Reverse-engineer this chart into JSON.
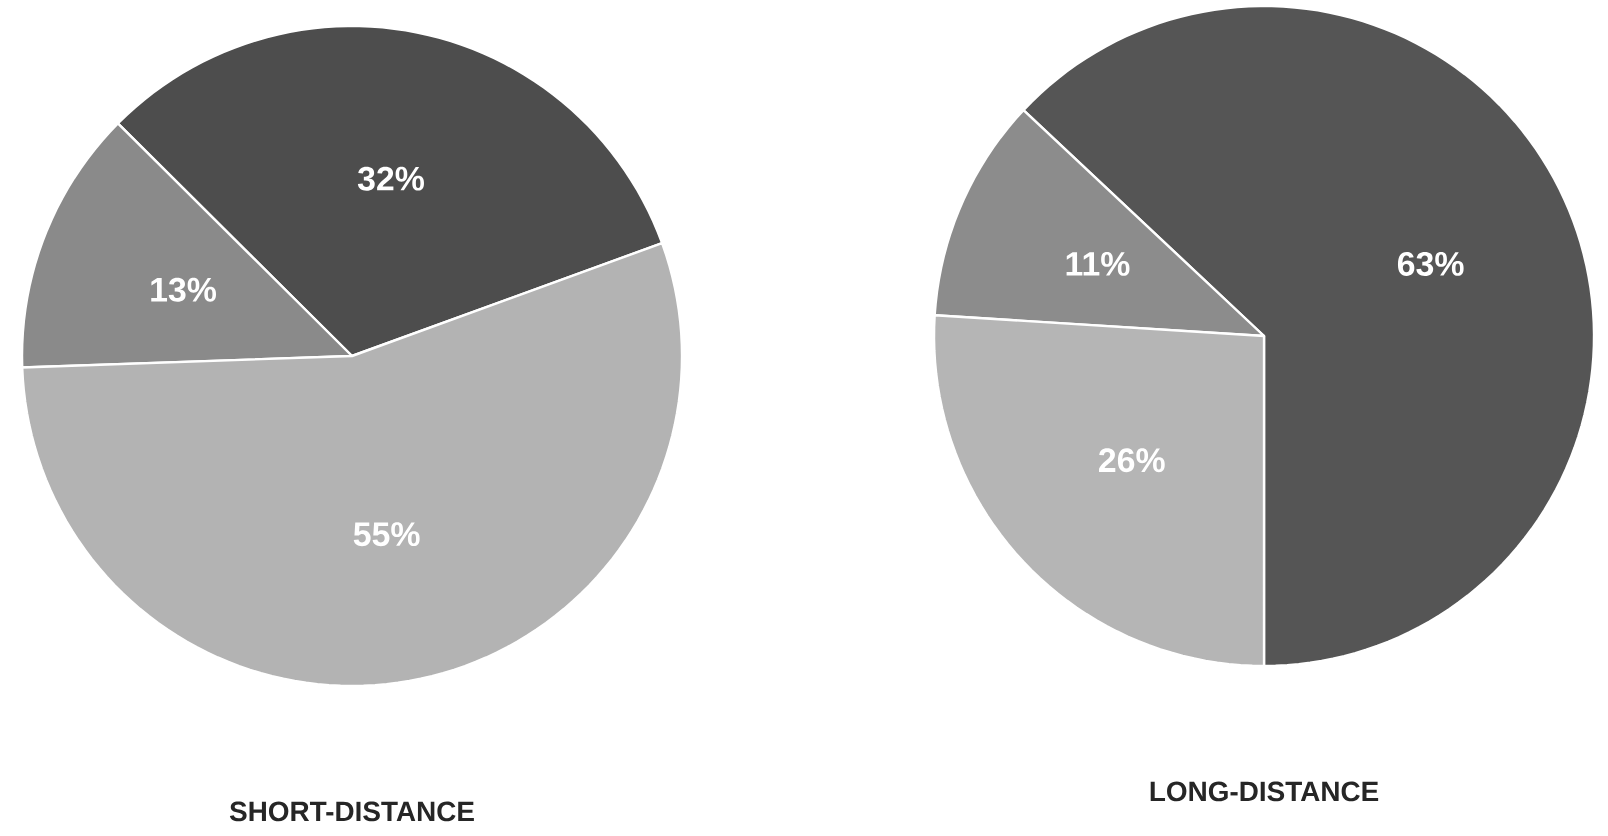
{
  "chart_data": [
    {
      "type": "pie",
      "title": "SHORT-DISTANCE",
      "categories": [
        null,
        null,
        null
      ],
      "values": [
        32,
        13,
        55
      ],
      "value_labels": [
        "32%",
        "13%",
        "55%"
      ],
      "colors": [
        "#4d4d4d",
        "#8a8a8a",
        "#b3b3b3"
      ]
    },
    {
      "type": "pie",
      "title": "LONG-DISTANCE",
      "categories": [
        null,
        null,
        null
      ],
      "values": [
        63,
        11,
        26
      ],
      "value_labels": [
        "63%",
        "11%",
        "26%"
      ],
      "colors": [
        "#555555",
        "#8c8c8c",
        "#b5b5b5"
      ]
    }
  ]
}
